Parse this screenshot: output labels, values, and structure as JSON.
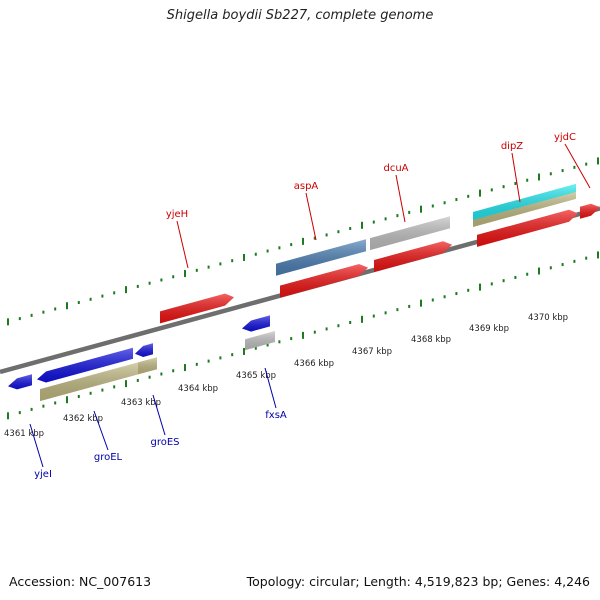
{
  "title": "Shigella boydii Sb227, complete genome",
  "footer": {
    "accession": "Accession: NC_007613",
    "stats": "Topology: circular; Length: 4,519,823 bp; Genes: 4,246"
  },
  "colors": {
    "backbone": "#8a8a8a",
    "tick": "#1e7a1e",
    "forward_label": "#cc0000",
    "reverse_label": "#0000aa",
    "gene_red": "#f01010",
    "gene_blue": "#1010e0",
    "gene_gray": "#c0c0c0",
    "gene_steel": "#4a7fb5",
    "gene_khaki": "#c0b880",
    "gene_cyan": "#20e8f0"
  },
  "scale": {
    "kbp_labels": [
      "4361 kbp",
      "4362 kbp",
      "4363 kbp",
      "4364 kbp",
      "4365 kbp",
      "4366 kbp",
      "4367 kbp",
      "4368 kbp",
      "4369 kbp",
      "4370 kbp"
    ]
  },
  "genes": {
    "forward": [
      {
        "name": "yjeH",
        "color": "gene_red"
      },
      {
        "name": "aspA",
        "color": "gene_red"
      },
      {
        "name": "dcuA",
        "color": "gene_red"
      },
      {
        "name": "dipZ",
        "color": "gene_red"
      },
      {
        "name": "yjdC",
        "color": "gene_red"
      }
    ],
    "reverse": [
      {
        "name": "yjeI",
        "color": "gene_blue"
      },
      {
        "name": "groEL",
        "color": "gene_blue"
      },
      {
        "name": "groES",
        "color": "gene_blue"
      },
      {
        "name": "fxsA",
        "color": "gene_blue"
      }
    ]
  }
}
